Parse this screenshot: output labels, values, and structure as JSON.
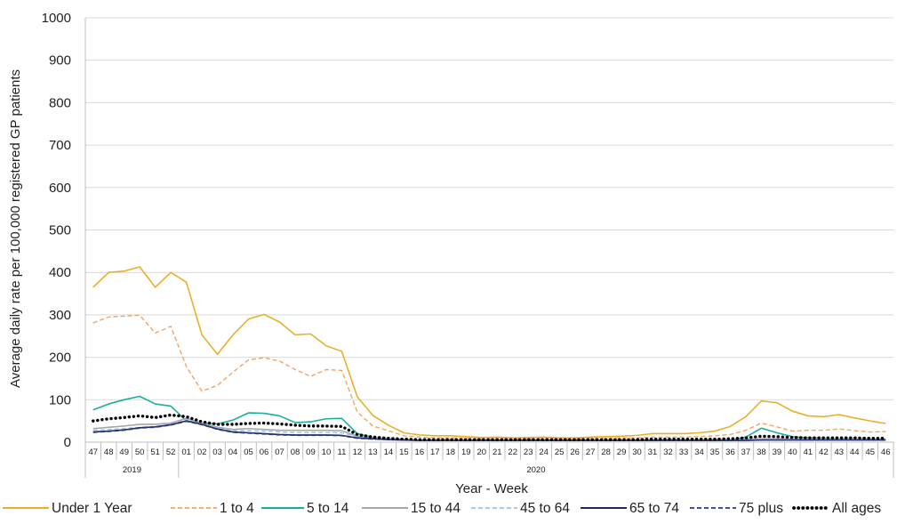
{
  "chart_data": {
    "type": "line",
    "title": "",
    "xlabel": "Year - Week",
    "ylabel": "Average daily rate per 100,000 registered GP patients",
    "ylim": [
      0,
      1000
    ],
    "yticks": [
      "0",
      "100",
      "200",
      "300",
      "400",
      "500",
      "600",
      "700",
      "800",
      "900",
      "1000"
    ],
    "grid": "horizontal",
    "legend_position": "bottom",
    "categories": [
      "47",
      "48",
      "49",
      "50",
      "51",
      "52",
      "01",
      "02",
      "03",
      "04",
      "05",
      "06",
      "07",
      "08",
      "09",
      "10",
      "11",
      "12",
      "13",
      "14",
      "15",
      "16",
      "17",
      "18",
      "19",
      "20",
      "21",
      "22",
      "23",
      "24",
      "25",
      "26",
      "27",
      "28",
      "29",
      "30",
      "31",
      "32",
      "33",
      "34",
      "35",
      "36",
      "37",
      "38",
      "39",
      "40",
      "41",
      "42",
      "43",
      "44",
      "45",
      "46"
    ],
    "year_groups": [
      {
        "label": "2019",
        "start": 0,
        "end": 5
      },
      {
        "label": "2020",
        "start": 6,
        "end": 51
      }
    ],
    "series": [
      {
        "name": "Under 1 Year",
        "color": "#E8B02A",
        "dash": "solid",
        "values": [
          365,
          400,
          403,
          413,
          365,
          400,
          377,
          253,
          207,
          253,
          290,
          301,
          283,
          253,
          255,
          227,
          214,
          107,
          63,
          40,
          22,
          17,
          15,
          15,
          13,
          11,
          12,
          10,
          11,
          12,
          10,
          10,
          12,
          13,
          14,
          16,
          20,
          20,
          20,
          22,
          26,
          37,
          60,
          97,
          93,
          73,
          62,
          60,
          65,
          57,
          50,
          44
        ]
      },
      {
        "name": "1 to 4",
        "color": "#F2A366",
        "dash": "dashed",
        "values": [
          281,
          295,
          297,
          299,
          257,
          273,
          178,
          120,
          134,
          165,
          194,
          199,
          191,
          171,
          155,
          171,
          169,
          71,
          38,
          27,
          15,
          12,
          10,
          10,
          9,
          8,
          9,
          8,
          8,
          9,
          8,
          8,
          9,
          9,
          10,
          10,
          12,
          12,
          12,
          13,
          15,
          18,
          28,
          45,
          36,
          26,
          28,
          28,
          31,
          27,
          24,
          25
        ]
      },
      {
        "name": "5 to 14",
        "color": "#1AAE9F",
        "dash": "solid",
        "values": [
          76,
          90,
          100,
          108,
          90,
          85,
          50,
          45,
          43,
          52,
          69,
          68,
          62,
          46,
          48,
          55,
          56,
          20,
          11,
          8,
          6,
          5,
          5,
          5,
          4,
          4,
          4,
          4,
          4,
          4,
          4,
          4,
          4,
          4,
          4,
          4,
          4,
          4,
          4,
          4,
          4,
          5,
          12,
          33,
          22,
          13,
          10,
          9,
          8,
          8,
          7,
          7
        ]
      },
      {
        "name": "15 to 44",
        "color": "#A6A6A6",
        "dash": "solid",
        "values": [
          32,
          35,
          38,
          42,
          42,
          45,
          56,
          45,
          35,
          30,
          32,
          30,
          28,
          28,
          28,
          28,
          27,
          14,
          10,
          8,
          6,
          5,
          5,
          5,
          5,
          5,
          5,
          5,
          5,
          5,
          5,
          5,
          5,
          5,
          5,
          5,
          6,
          6,
          6,
          6,
          6,
          6,
          7,
          8,
          8,
          8,
          8,
          8,
          8,
          8,
          7,
          7
        ]
      },
      {
        "name": "45 to 64",
        "color": "#9DC3E6",
        "dash": "dashed",
        "values": [
          28,
          30,
          32,
          35,
          37,
          42,
          53,
          42,
          33,
          27,
          27,
          26,
          24,
          23,
          23,
          23,
          22,
          12,
          9,
          7,
          5,
          4,
          4,
          4,
          4,
          4,
          4,
          4,
          4,
          4,
          4,
          4,
          4,
          4,
          4,
          4,
          4,
          4,
          4,
          4,
          4,
          4,
          5,
          6,
          6,
          6,
          6,
          6,
          6,
          6,
          5,
          5
        ]
      },
      {
        "name": "65 to 74",
        "color": "#1F2A5E",
        "dash": "solid",
        "values": [
          24,
          26,
          29,
          34,
          36,
          41,
          50,
          42,
          31,
          24,
          22,
          20,
          18,
          17,
          17,
          17,
          16,
          10,
          8,
          6,
          5,
          4,
          4,
          4,
          4,
          4,
          4,
          4,
          4,
          4,
          4,
          4,
          4,
          4,
          4,
          4,
          4,
          4,
          4,
          4,
          4,
          4,
          4,
          5,
          5,
          5,
          5,
          5,
          5,
          5,
          5,
          5
        ]
      },
      {
        "name": "75 plus",
        "color": "#2B3784",
        "dash": "dashed",
        "values": [
          23,
          25,
          28,
          33,
          35,
          40,
          49,
          41,
          30,
          23,
          21,
          19,
          17,
          16,
          16,
          16,
          15,
          9,
          7,
          6,
          5,
          4,
          4,
          4,
          4,
          4,
          4,
          4,
          4,
          4,
          4,
          4,
          4,
          4,
          4,
          4,
          4,
          4,
          4,
          4,
          4,
          4,
          4,
          5,
          5,
          5,
          5,
          5,
          5,
          5,
          5,
          5
        ]
      },
      {
        "name": "All ages",
        "color": "#000000",
        "dash": "dotted",
        "values": [
          50,
          55,
          58,
          62,
          58,
          64,
          60,
          48,
          42,
          42,
          44,
          45,
          43,
          40,
          38,
          38,
          37,
          18,
          12,
          9,
          7,
          6,
          6,
          6,
          6,
          6,
          6,
          6,
          6,
          6,
          6,
          6,
          6,
          6,
          6,
          6,
          7,
          7,
          7,
          7,
          7,
          8,
          10,
          14,
          13,
          11,
          10,
          10,
          10,
          10,
          9,
          9
        ]
      }
    ]
  }
}
